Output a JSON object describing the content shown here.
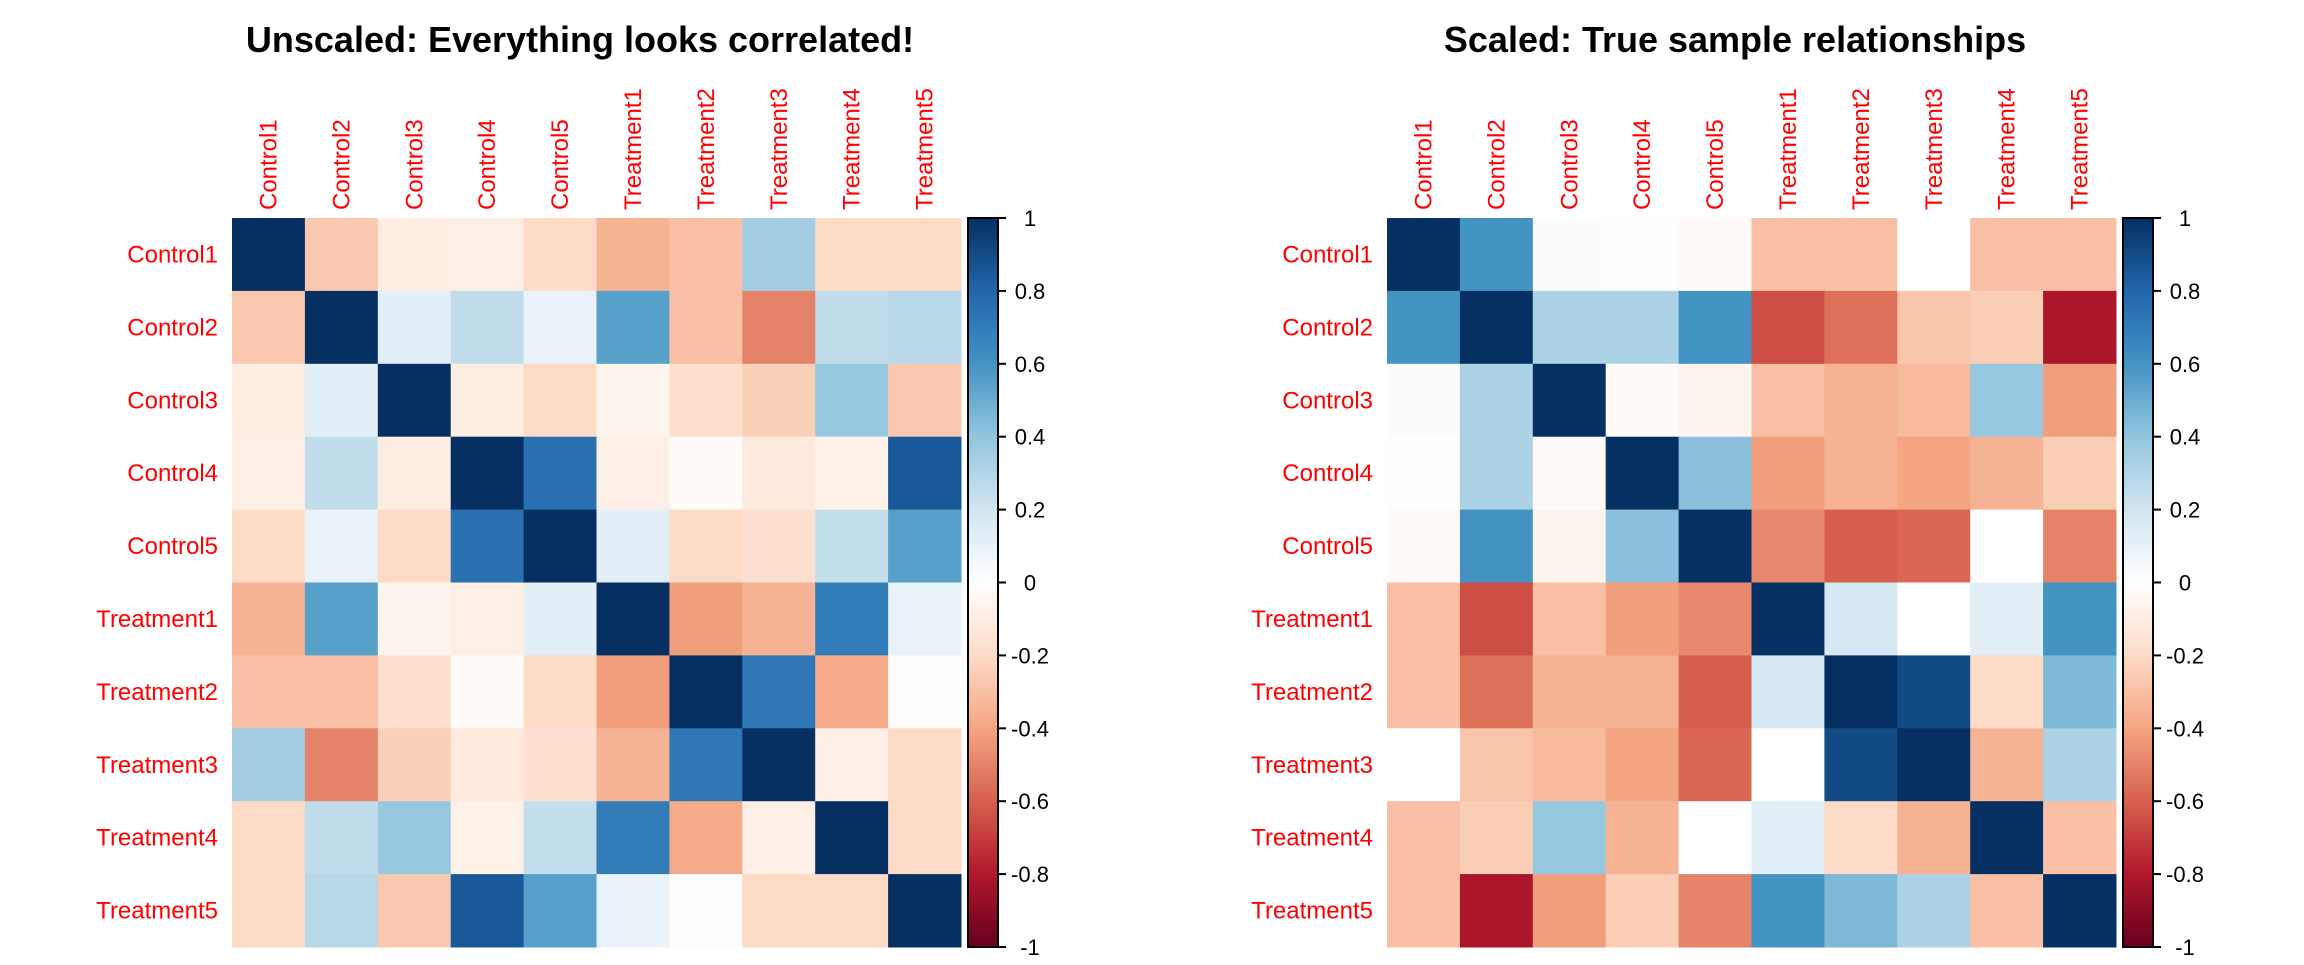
{
  "chart_data": [
    {
      "type": "heatmap",
      "title": "Unscaled: Everything looks correlated!",
      "row_labels": [
        "Control1",
        "Control2",
        "Control3",
        "Control4",
        "Control5",
        "Treatment1",
        "Treatment2",
        "Treatment3",
        "Treatment4",
        "Treatment5"
      ],
      "col_labels": [
        "Control1",
        "Control2",
        "Control3",
        "Control4",
        "Control5",
        "Treatment1",
        "Treatment2",
        "Treatment3",
        "Treatment4",
        "Treatment5"
      ],
      "values": [
        [
          1,
          -0.27,
          -0.1,
          -0.09,
          -0.2,
          -0.35,
          -0.3,
          0.35,
          -0.2,
          -0.2
        ],
        [
          -0.27,
          1,
          0.12,
          0.25,
          0.1,
          0.55,
          -0.3,
          -0.5,
          0.25,
          0.28
        ],
        [
          -0.1,
          0.12,
          1,
          -0.1,
          -0.2,
          -0.06,
          -0.18,
          -0.24,
          0.38,
          -0.27
        ],
        [
          -0.09,
          0.25,
          -0.1,
          1,
          0.75,
          -0.09,
          -0.02,
          -0.12,
          -0.08,
          0.85
        ],
        [
          -0.2,
          0.1,
          -0.2,
          0.75,
          1,
          0.12,
          -0.2,
          -0.17,
          0.24,
          0.55
        ],
        [
          -0.35,
          0.55,
          -0.06,
          -0.09,
          0.12,
          1,
          -0.42,
          -0.35,
          0.7,
          0.1
        ],
        [
          -0.3,
          -0.3,
          -0.18,
          -0.02,
          -0.2,
          -0.42,
          1,
          0.72,
          -0.38,
          -0.01
        ],
        [
          0.35,
          -0.5,
          -0.24,
          -0.12,
          -0.17,
          -0.35,
          0.72,
          1,
          -0.09,
          -0.2
        ],
        [
          -0.2,
          0.25,
          0.38,
          -0.08,
          0.24,
          0.7,
          -0.38,
          -0.09,
          1,
          -0.2
        ],
        [
          -0.2,
          0.28,
          -0.27,
          0.85,
          0.55,
          0.1,
          -0.01,
          -0.2,
          -0.2,
          1
        ]
      ],
      "colorbar": {
        "range": [
          -1,
          1
        ],
        "ticks": [
          "1",
          "0.8",
          "0.6",
          "0.4",
          "0.2",
          "0",
          "-0.2",
          "-0.4",
          "-0.6",
          "-0.8",
          "-1"
        ],
        "colormap": "RdBu"
      }
    },
    {
      "type": "heatmap",
      "title": "Scaled: True sample relationships",
      "row_labels": [
        "Control1",
        "Control2",
        "Control3",
        "Control4",
        "Control5",
        "Treatment1",
        "Treatment2",
        "Treatment3",
        "Treatment4",
        "Treatment5"
      ],
      "col_labels": [
        "Control1",
        "Control2",
        "Control3",
        "Control4",
        "Control5",
        "Treatment1",
        "Treatment2",
        "Treatment3",
        "Treatment4",
        "Treatment5"
      ],
      "values": [
        [
          1,
          0.6,
          0.02,
          0.01,
          -0.03,
          -0.3,
          -0.3,
          0.0,
          -0.3,
          -0.3
        ],
        [
          0.6,
          1,
          0.32,
          0.32,
          0.6,
          -0.65,
          -0.55,
          -0.28,
          -0.25,
          -0.82
        ],
        [
          0.02,
          0.32,
          1,
          -0.02,
          -0.06,
          -0.3,
          -0.35,
          -0.32,
          0.38,
          -0.42
        ],
        [
          0.01,
          0.32,
          -0.02,
          1,
          0.42,
          -0.42,
          -0.35,
          -0.4,
          -0.35,
          -0.25
        ],
        [
          -0.03,
          0.6,
          -0.06,
          0.42,
          1,
          -0.48,
          -0.6,
          -0.58,
          0.0,
          -0.5
        ],
        [
          -0.3,
          -0.65,
          -0.3,
          -0.42,
          -0.48,
          1,
          0.18,
          0.0,
          0.12,
          0.6
        ],
        [
          -0.3,
          -0.55,
          -0.35,
          -0.35,
          -0.6,
          0.18,
          1,
          0.9,
          -0.2,
          0.45
        ],
        [
          0.0,
          -0.28,
          -0.32,
          -0.4,
          -0.58,
          0.0,
          0.9,
          1,
          -0.35,
          0.32
        ],
        [
          -0.3,
          -0.25,
          0.38,
          -0.35,
          0.0,
          0.12,
          -0.2,
          -0.35,
          1,
          -0.3
        ],
        [
          -0.3,
          -0.82,
          -0.42,
          -0.25,
          -0.5,
          0.6,
          0.45,
          0.32,
          -0.3,
          1
        ]
      ],
      "colorbar": {
        "range": [
          -1,
          1
        ],
        "ticks": [
          "1",
          "0.8",
          "0.6",
          "0.4",
          "0.2",
          "0",
          "-0.2",
          "-0.4",
          "-0.6",
          "-0.8",
          "-1"
        ],
        "colormap": "RdBu"
      }
    }
  ]
}
